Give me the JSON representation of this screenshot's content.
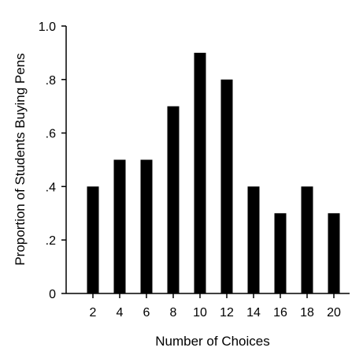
{
  "chart_data": {
    "type": "bar",
    "categories": [
      "2",
      "4",
      "6",
      "8",
      "10",
      "12",
      "14",
      "16",
      "18",
      "20"
    ],
    "values": [
      0.4,
      0.5,
      0.5,
      0.7,
      0.9,
      0.8,
      0.4,
      0.3,
      0.4,
      0.3
    ],
    "title": "",
    "xlabel": "Number of Choices",
    "ylabel": "Proportion of Students Buying Pens",
    "ylim": [
      0,
      1.0
    ],
    "yticks": [
      0,
      0.2,
      0.4,
      0.6,
      0.8,
      1.0
    ],
    "ytick_labels": [
      "0",
      ".2",
      ".4",
      ".6",
      ".8",
      "1.0"
    ],
    "grid": false,
    "legend": "none",
    "bar_color": "#000000",
    "axis_color": "#000000"
  }
}
